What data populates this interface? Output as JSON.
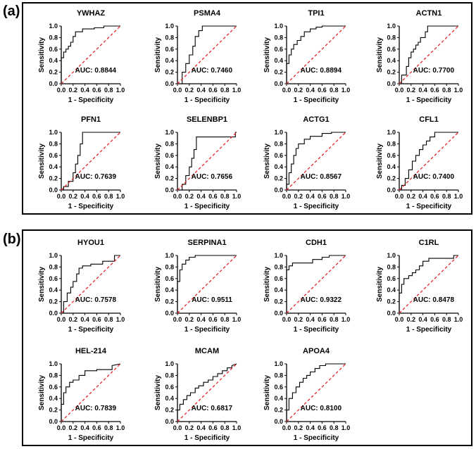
{
  "panels": [
    {
      "label": "(a)"
    },
    {
      "label": "(b)"
    }
  ],
  "common": {
    "xlabel": "1 - Specificity",
    "ylabel": "Sensitivity",
    "xticks": [
      "0.0",
      "0.2",
      "0.4",
      "0.6",
      "0.8",
      "1.0"
    ],
    "yticks": [
      "0.0",
      "0.2",
      "0.4",
      "0.6",
      "0.8",
      "1.0"
    ],
    "colors": {
      "roc": "#000000",
      "reference": "#e8262a",
      "frame": "#000000"
    }
  },
  "chart_data": [
    {
      "type": "line",
      "panel": "(a)",
      "title": "YWHAZ",
      "auc_label": "AUC: 0.8844",
      "xlabel": "1 - Specificity",
      "ylabel": "Sensitivity",
      "xlim": [
        0,
        1
      ],
      "ylim": [
        0,
        1
      ],
      "series": [
        {
          "name": "ROC",
          "x": [
            0,
            0,
            0.04,
            0.04,
            0.08,
            0.08,
            0.12,
            0.12,
            0.16,
            0.16,
            0.2,
            0.2,
            0.24,
            0.24,
            0.36,
            0.36,
            0.56,
            0.56,
            0.72,
            0.72,
            1
          ],
          "y": [
            0,
            0.45,
            0.45,
            0.55,
            0.55,
            0.6,
            0.6,
            0.65,
            0.65,
            0.72,
            0.72,
            0.82,
            0.82,
            0.9,
            0.9,
            0.95,
            0.95,
            0.97,
            0.97,
            1,
            1
          ]
        },
        {
          "name": "Reference",
          "x": [
            0,
            1
          ],
          "y": [
            0,
            1
          ]
        }
      ]
    },
    {
      "type": "line",
      "panel": "(a)",
      "title": "PSMA4",
      "auc_label": "AUC: 0.7460",
      "xlabel": "1 - Specificity",
      "ylabel": "Sensitivity",
      "xlim": [
        0,
        1
      ],
      "ylim": [
        0,
        1
      ],
      "series": [
        {
          "name": "ROC",
          "x": [
            0,
            0.08,
            0.08,
            0.14,
            0.14,
            0.2,
            0.2,
            0.26,
            0.26,
            0.3,
            0.3,
            0.36,
            0.36,
            0.42,
            0.42,
            1
          ],
          "y": [
            0,
            0,
            0.2,
            0.2,
            0.35,
            0.35,
            0.5,
            0.5,
            0.65,
            0.65,
            0.82,
            0.82,
            0.92,
            0.92,
            1,
            1
          ]
        },
        {
          "name": "Reference",
          "x": [
            0,
            1
          ],
          "y": [
            0,
            1
          ]
        }
      ]
    },
    {
      "type": "line",
      "panel": "(a)",
      "title": "TPI1",
      "auc_label": "AUC: 0.8894",
      "xlabel": "1 - Specificity",
      "ylabel": "Sensitivity",
      "xlim": [
        0,
        1
      ],
      "ylim": [
        0,
        1
      ],
      "series": [
        {
          "name": "ROC",
          "x": [
            0,
            0,
            0.04,
            0.04,
            0.08,
            0.08,
            0.12,
            0.12,
            0.18,
            0.18,
            0.24,
            0.24,
            0.3,
            0.3,
            0.4,
            0.4,
            0.5,
            0.5,
            0.6,
            0.6,
            1
          ],
          "y": [
            0,
            0.35,
            0.35,
            0.5,
            0.5,
            0.6,
            0.6,
            0.68,
            0.68,
            0.75,
            0.75,
            0.82,
            0.82,
            0.9,
            0.9,
            0.95,
            0.95,
            0.98,
            0.98,
            1,
            1
          ]
        },
        {
          "name": "Reference",
          "x": [
            0,
            1
          ],
          "y": [
            0,
            1
          ]
        }
      ]
    },
    {
      "type": "line",
      "panel": "(a)",
      "title": "ACTN1",
      "auc_label": "AUC: 0.7700",
      "xlabel": "1 - Specificity",
      "ylabel": "Sensitivity",
      "xlim": [
        0,
        1
      ],
      "ylim": [
        0,
        1
      ],
      "series": [
        {
          "name": "ROC",
          "x": [
            0,
            0.04,
            0.04,
            0.12,
            0.12,
            0.16,
            0.16,
            0.2,
            0.2,
            0.24,
            0.24,
            0.28,
            0.28,
            0.32,
            0.32,
            0.36,
            0.36,
            0.44,
            0.44,
            0.48,
            0.48,
            1
          ],
          "y": [
            0,
            0,
            0.15,
            0.15,
            0.3,
            0.3,
            0.45,
            0.45,
            0.55,
            0.55,
            0.6,
            0.6,
            0.67,
            0.67,
            0.72,
            0.72,
            0.8,
            0.8,
            0.9,
            0.9,
            1,
            1
          ]
        },
        {
          "name": "Reference",
          "x": [
            0,
            1
          ],
          "y": [
            0,
            1
          ]
        }
      ]
    },
    {
      "type": "line",
      "panel": "(a)",
      "title": "PFN1",
      "auc_label": "AUC: 0.7639",
      "xlabel": "1 - Specificity",
      "ylabel": "Sensitivity",
      "xlim": [
        0,
        1
      ],
      "ylim": [
        0,
        1
      ],
      "series": [
        {
          "name": "ROC",
          "x": [
            0,
            0.04,
            0.04,
            0.12,
            0.12,
            0.2,
            0.2,
            0.24,
            0.24,
            0.28,
            0.28,
            0.32,
            0.32,
            0.36,
            0.36,
            1
          ],
          "y": [
            0,
            0,
            0.06,
            0.06,
            0.15,
            0.15,
            0.3,
            0.3,
            0.45,
            0.45,
            0.6,
            0.6,
            0.8,
            0.8,
            1,
            1
          ]
        },
        {
          "name": "Reference",
          "x": [
            0,
            1
          ],
          "y": [
            0,
            1
          ]
        }
      ]
    },
    {
      "type": "line",
      "panel": "(a)",
      "title": "SELENBP1",
      "auc_label": "AUC: 0.7656",
      "xlabel": "1 - Specificity",
      "ylabel": "Sensitivity",
      "xlim": [
        0,
        1
      ],
      "ylim": [
        0,
        1
      ],
      "series": [
        {
          "name": "ROC",
          "x": [
            0,
            0.08,
            0.08,
            0.14,
            0.14,
            0.2,
            0.2,
            0.24,
            0.24,
            0.28,
            0.28,
            0.32,
            0.32,
            0.98,
            0.98,
            1
          ],
          "y": [
            0,
            0,
            0.1,
            0.1,
            0.25,
            0.25,
            0.4,
            0.4,
            0.55,
            0.55,
            0.7,
            0.7,
            0.92,
            0.92,
            1,
            1
          ]
        },
        {
          "name": "Reference",
          "x": [
            0,
            1
          ],
          "y": [
            0,
            1
          ]
        }
      ]
    },
    {
      "type": "line",
      "panel": "(a)",
      "title": "ACTG1",
      "auc_label": "AUC: 0.8567",
      "xlabel": "1 - Specificity",
      "ylabel": "Sensitivity",
      "xlim": [
        0,
        1
      ],
      "ylim": [
        0,
        1
      ],
      "series": [
        {
          "name": "ROC",
          "x": [
            0,
            0,
            0.04,
            0.04,
            0.08,
            0.08,
            0.12,
            0.12,
            0.16,
            0.16,
            0.2,
            0.2,
            0.3,
            0.3,
            0.4,
            0.4,
            0.6,
            0.6,
            0.76,
            0.76,
            1
          ],
          "y": [
            0,
            0.1,
            0.1,
            0.3,
            0.3,
            0.45,
            0.45,
            0.6,
            0.6,
            0.72,
            0.72,
            0.8,
            0.8,
            0.88,
            0.88,
            0.93,
            0.93,
            0.98,
            0.98,
            1,
            1
          ]
        },
        {
          "name": "Reference",
          "x": [
            0,
            1
          ],
          "y": [
            0,
            1
          ]
        }
      ]
    },
    {
      "type": "line",
      "panel": "(a)",
      "title": "CFL1",
      "auc_label": "AUC: 0.7400",
      "xlabel": "1 - Specificity",
      "ylabel": "Sensitivity",
      "xlim": [
        0,
        1
      ],
      "ylim": [
        0,
        1
      ],
      "series": [
        {
          "name": "ROC",
          "x": [
            0,
            0.04,
            0.04,
            0.1,
            0.1,
            0.16,
            0.16,
            0.22,
            0.22,
            0.28,
            0.28,
            0.34,
            0.34,
            0.4,
            0.4,
            0.46,
            0.46,
            0.52,
            0.52,
            0.6,
            0.6,
            1
          ],
          "y": [
            0,
            0,
            0.08,
            0.08,
            0.2,
            0.2,
            0.35,
            0.35,
            0.5,
            0.5,
            0.6,
            0.6,
            0.7,
            0.7,
            0.78,
            0.78,
            0.85,
            0.85,
            0.92,
            0.92,
            1,
            1
          ]
        },
        {
          "name": "Reference",
          "x": [
            0,
            1
          ],
          "y": [
            0,
            1
          ]
        }
      ]
    },
    {
      "type": "line",
      "panel": "(b)",
      "title": "HYOU1",
      "auc_label": "AUC: 0.7578",
      "xlabel": "1 - Specificity",
      "ylabel": "Sensitivity",
      "xlim": [
        0,
        1
      ],
      "ylim": [
        0,
        1
      ],
      "series": [
        {
          "name": "ROC",
          "x": [
            0,
            0.04,
            0.04,
            0.1,
            0.1,
            0.16,
            0.16,
            0.2,
            0.2,
            0.26,
            0.26,
            0.3,
            0.3,
            0.36,
            0.36,
            0.5,
            0.5,
            0.7,
            0.7,
            0.9,
            0.9,
            1
          ],
          "y": [
            0,
            0,
            0.2,
            0.2,
            0.35,
            0.35,
            0.45,
            0.45,
            0.55,
            0.55,
            0.68,
            0.68,
            0.78,
            0.78,
            0.82,
            0.82,
            0.85,
            0.85,
            0.9,
            0.9,
            1,
            1
          ]
        },
        {
          "name": "Reference",
          "x": [
            0,
            1
          ],
          "y": [
            0,
            1
          ]
        }
      ]
    },
    {
      "type": "line",
      "panel": "(b)",
      "title": "SERPINA1",
      "auc_label": "AUC: 0.9511",
      "xlabel": "1 - Specificity",
      "ylabel": "Sensitivity",
      "xlim": [
        0,
        1
      ],
      "ylim": [
        0,
        1
      ],
      "series": [
        {
          "name": "ROC",
          "x": [
            0,
            0,
            0.04,
            0.04,
            0.08,
            0.08,
            0.14,
            0.14,
            0.2,
            0.2,
            0.3,
            0.3,
            1
          ],
          "y": [
            0,
            0.55,
            0.55,
            0.75,
            0.75,
            0.85,
            0.85,
            0.92,
            0.92,
            0.97,
            0.97,
            1,
            1
          ]
        },
        {
          "name": "Reference",
          "x": [
            0,
            1
          ],
          "y": [
            0,
            1
          ]
        }
      ]
    },
    {
      "type": "line",
      "panel": "(b)",
      "title": "CDH1",
      "auc_label": "AUC: 0.9322",
      "xlabel": "1 - Specificity",
      "ylabel": "Sensitivity",
      "xlim": [
        0,
        1
      ],
      "ylim": [
        0,
        1
      ],
      "series": [
        {
          "name": "ROC",
          "x": [
            0,
            0,
            0.04,
            0.04,
            0.1,
            0.1,
            0.44,
            0.44,
            0.6,
            0.6,
            0.72,
            0.72,
            1
          ],
          "y": [
            0,
            0.75,
            0.75,
            0.82,
            0.82,
            0.87,
            0.87,
            0.93,
            0.93,
            0.97,
            0.97,
            1,
            1
          ]
        },
        {
          "name": "Reference",
          "x": [
            0,
            1
          ],
          "y": [
            0,
            1
          ]
        }
      ]
    },
    {
      "type": "line",
      "panel": "(b)",
      "title": "C1RL",
      "auc_label": "AUC: 0.8478",
      "xlabel": "1 - Specificity",
      "ylabel": "Sensitivity",
      "xlim": [
        0,
        1
      ],
      "ylim": [
        0,
        1
      ],
      "series": [
        {
          "name": "ROC",
          "x": [
            0,
            0,
            0.04,
            0.04,
            0.08,
            0.08,
            0.16,
            0.16,
            0.22,
            0.22,
            0.28,
            0.28,
            0.34,
            0.34,
            0.4,
            0.4,
            0.5,
            0.5,
            0.92,
            0.92,
            1
          ],
          "y": [
            0,
            0.35,
            0.35,
            0.5,
            0.5,
            0.6,
            0.6,
            0.65,
            0.65,
            0.7,
            0.7,
            0.75,
            0.75,
            0.82,
            0.82,
            0.9,
            0.9,
            0.95,
            0.95,
            1,
            1
          ]
        },
        {
          "name": "Reference",
          "x": [
            0,
            1
          ],
          "y": [
            0,
            1
          ]
        }
      ]
    },
    {
      "type": "line",
      "panel": "(b)",
      "title": "HEL-214",
      "auc_label": "AUC: 0.7839",
      "xlabel": "1 - Specificity",
      "ylabel": "Sensitivity",
      "xlim": [
        0,
        1
      ],
      "ylim": [
        0,
        1
      ],
      "series": [
        {
          "name": "ROC",
          "x": [
            0,
            0,
            0.04,
            0.04,
            0.08,
            0.08,
            0.14,
            0.14,
            0.2,
            0.2,
            0.3,
            0.3,
            0.4,
            0.4,
            0.6,
            0.6,
            0.86,
            0.86,
            1
          ],
          "y": [
            0,
            0.3,
            0.3,
            0.5,
            0.5,
            0.6,
            0.6,
            0.68,
            0.68,
            0.72,
            0.72,
            0.8,
            0.8,
            0.88,
            0.88,
            0.9,
            0.9,
            0.97,
            1
          ]
        },
        {
          "name": "Reference",
          "x": [
            0,
            1
          ],
          "y": [
            0,
            1
          ]
        }
      ]
    },
    {
      "type": "line",
      "panel": "(b)",
      "title": "MCAM",
      "auc_label": "AUC: 0.6817",
      "xlabel": "1 - Specificity",
      "ylabel": "Sensitivity",
      "xlim": [
        0,
        1
      ],
      "ylim": [
        0,
        1
      ],
      "series": [
        {
          "name": "ROC",
          "x": [
            0,
            0,
            0.04,
            0.04,
            0.1,
            0.1,
            0.16,
            0.16,
            0.22,
            0.22,
            0.3,
            0.3,
            0.36,
            0.36,
            0.44,
            0.44,
            0.52,
            0.52,
            0.6,
            0.6,
            0.68,
            0.68,
            0.76,
            0.76,
            0.84,
            0.84,
            0.92,
            0.92,
            1
          ],
          "y": [
            0,
            0.2,
            0.2,
            0.3,
            0.3,
            0.38,
            0.38,
            0.45,
            0.45,
            0.5,
            0.5,
            0.58,
            0.58,
            0.62,
            0.62,
            0.68,
            0.68,
            0.72,
            0.72,
            0.78,
            0.78,
            0.83,
            0.83,
            0.88,
            0.88,
            0.93,
            0.93,
            0.97,
            1
          ]
        },
        {
          "name": "Reference",
          "x": [
            0,
            1
          ],
          "y": [
            0,
            1
          ]
        }
      ]
    },
    {
      "type": "line",
      "panel": "(b)",
      "title": "APOA4",
      "auc_label": "AUC: 0.8100",
      "xlabel": "1 - Specificity",
      "ylabel": "Sensitivity",
      "xlim": [
        0,
        1
      ],
      "ylim": [
        0,
        1
      ],
      "series": [
        {
          "name": "ROC",
          "x": [
            0,
            0,
            0.04,
            0.04,
            0.1,
            0.1,
            0.16,
            0.16,
            0.22,
            0.22,
            0.28,
            0.28,
            0.34,
            0.34,
            0.4,
            0.4,
            0.48,
            0.48,
            0.56,
            0.56,
            0.66,
            0.66,
            1
          ],
          "y": [
            0,
            0.2,
            0.2,
            0.4,
            0.4,
            0.5,
            0.5,
            0.6,
            0.6,
            0.68,
            0.68,
            0.75,
            0.75,
            0.8,
            0.8,
            0.86,
            0.86,
            0.92,
            0.92,
            0.97,
            0.97,
            1,
            1
          ]
        },
        {
          "name": "Reference",
          "x": [
            0,
            1
          ],
          "y": [
            0,
            1
          ]
        }
      ]
    }
  ]
}
